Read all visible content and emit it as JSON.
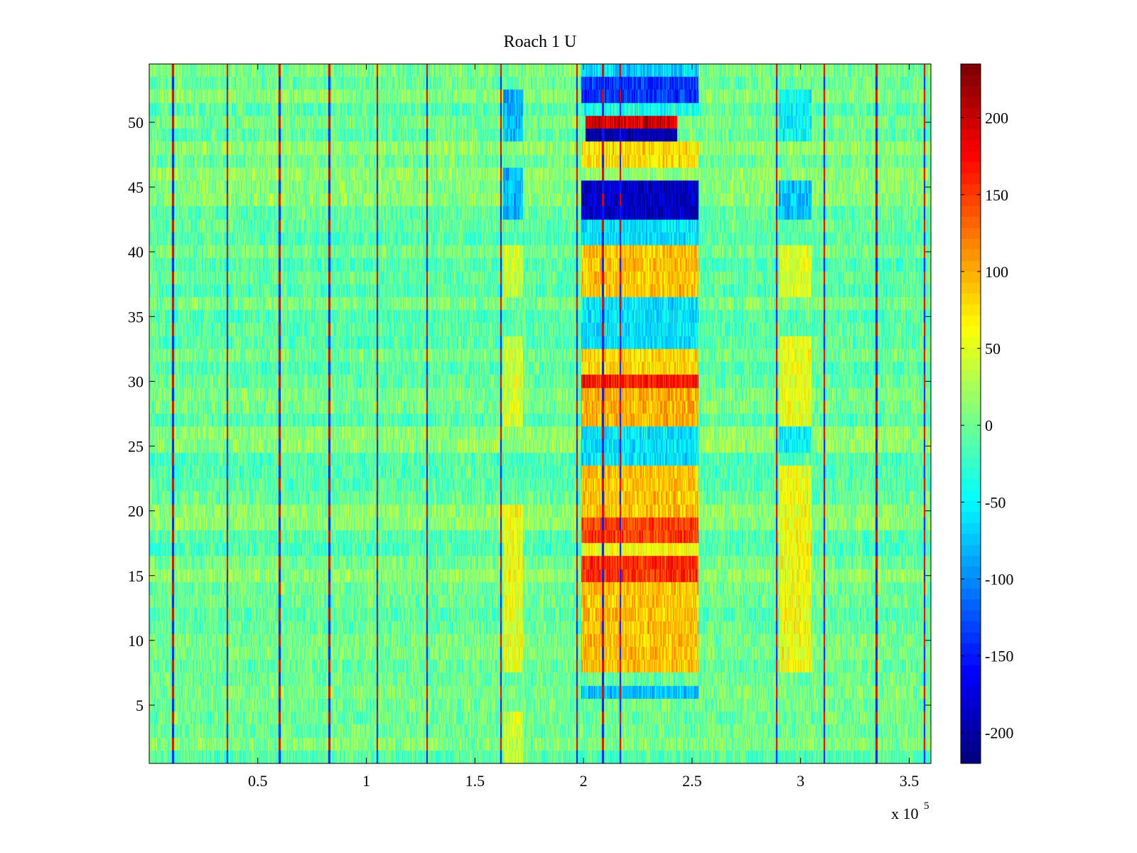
{
  "figure": {
    "background": "#ffffff"
  },
  "chart_data": {
    "type": "heatmap",
    "title": "Roach 1 U",
    "xlabel": "",
    "ylabel": "",
    "x_exponent_label": {
      "base": "x 10",
      "exponent": "5"
    },
    "xlim": [
      0,
      3.6
    ],
    "ylim": [
      0.5,
      54.5
    ],
    "x_ticks": [
      0.5,
      1,
      1.5,
      2,
      2.5,
      3,
      3.5
    ],
    "x_tick_labels": [
      "0.5",
      "1",
      "1.5",
      "2",
      "2.5",
      "3",
      "3.5"
    ],
    "y_ticks": [
      5,
      10,
      15,
      20,
      25,
      30,
      35,
      40,
      45,
      50
    ],
    "y_tick_labels": [
      "5",
      "10",
      "15",
      "20",
      "25",
      "30",
      "35",
      "40",
      "45",
      "50"
    ],
    "rows": 54,
    "colormap": "jet",
    "clim": [
      -220,
      235
    ],
    "colorbar": {
      "ticks": [
        -200,
        -150,
        -100,
        -50,
        0,
        50,
        100,
        150,
        200
      ],
      "tick_labels": [
        "-200",
        "-150",
        "-100",
        "-50",
        "0",
        "50",
        "100",
        "150",
        "200"
      ]
    },
    "background_level": 0,
    "vertical_stripes_x": [
      0.11,
      0.36,
      0.6,
      0.83,
      1.05,
      1.28,
      1.62,
      1.97,
      2.09,
      2.17,
      2.89,
      3.11,
      3.35,
      3.57
    ],
    "band_regions": [
      {
        "x": [
          1.63,
          1.72
        ],
        "rows": [
          1,
          4
        ],
        "value": 40
      },
      {
        "x": [
          1.63,
          1.72
        ],
        "rows": [
          8,
          14
        ],
        "value": 55
      },
      {
        "x": [
          1.63,
          1.72
        ],
        "rows": [
          15,
          20
        ],
        "value": 60
      },
      {
        "x": [
          1.63,
          1.72
        ],
        "rows": [
          27,
          33
        ],
        "value": 45
      },
      {
        "x": [
          1.63,
          1.72
        ],
        "rows": [
          37,
          40
        ],
        "value": 45
      },
      {
        "x": [
          1.63,
          1.72
        ],
        "rows": [
          43,
          46
        ],
        "value": -80
      },
      {
        "x": [
          1.63,
          1.72
        ],
        "rows": [
          49,
          52
        ],
        "value": -80
      },
      {
        "x": [
          1.99,
          2.53
        ],
        "rows": [
          6,
          6
        ],
        "value": -75
      },
      {
        "x": [
          1.99,
          2.53
        ],
        "rows": [
          8,
          14
        ],
        "value": 90
      },
      {
        "x": [
          1.99,
          2.53
        ],
        "rows": [
          15,
          16
        ],
        "value": 160
      },
      {
        "x": [
          1.99,
          2.53
        ],
        "rows": [
          17,
          17
        ],
        "value": 60
      },
      {
        "x": [
          1.99,
          2.53
        ],
        "rows": [
          18,
          19
        ],
        "value": 150
      },
      {
        "x": [
          1.99,
          2.53
        ],
        "rows": [
          20,
          23
        ],
        "value": 90
      },
      {
        "x": [
          1.99,
          2.53
        ],
        "rows": [
          24,
          26
        ],
        "value": -60
      },
      {
        "x": [
          1.99,
          2.53
        ],
        "rows": [
          27,
          29
        ],
        "value": 100
      },
      {
        "x": [
          1.99,
          2.53
        ],
        "rows": [
          30,
          30
        ],
        "value": 170
      },
      {
        "x": [
          1.99,
          2.53
        ],
        "rows": [
          31,
          32
        ],
        "value": 80
      },
      {
        "x": [
          1.99,
          2.53
        ],
        "rows": [
          33,
          36
        ],
        "value": -60
      },
      {
        "x": [
          1.99,
          2.53
        ],
        "rows": [
          37,
          40
        ],
        "value": 90
      },
      {
        "x": [
          1.99,
          2.53
        ],
        "rows": [
          41,
          42
        ],
        "value": -60
      },
      {
        "x": [
          1.99,
          2.53
        ],
        "rows": [
          43,
          45
        ],
        "value": -190
      },
      {
        "x": [
          1.99,
          2.53
        ],
        "rows": [
          47,
          48
        ],
        "value": 80
      },
      {
        "x": [
          2.01,
          2.43
        ],
        "rows": [
          49,
          49
        ],
        "value": -200
      },
      {
        "x": [
          2.01,
          2.43
        ],
        "rows": [
          50,
          50
        ],
        "value": 200
      },
      {
        "x": [
          1.99,
          2.53
        ],
        "rows": [
          51,
          51
        ],
        "value": -40
      },
      {
        "x": [
          1.99,
          2.53
        ],
        "rows": [
          52,
          53
        ],
        "value": -140
      },
      {
        "x": [
          1.99,
          2.53
        ],
        "rows": [
          54,
          54
        ],
        "value": -70
      },
      {
        "x": [
          2.9,
          3.05
        ],
        "rows": [
          8,
          14
        ],
        "value": 60
      },
      {
        "x": [
          2.9,
          3.05
        ],
        "rows": [
          15,
          23
        ],
        "value": 60
      },
      {
        "x": [
          2.9,
          3.05
        ],
        "rows": [
          25,
          26
        ],
        "value": -50
      },
      {
        "x": [
          2.9,
          3.05
        ],
        "rows": [
          27,
          33
        ],
        "value": 55
      },
      {
        "x": [
          2.9,
          3.05
        ],
        "rows": [
          37,
          40
        ],
        "value": 50
      },
      {
        "x": [
          2.9,
          3.05
        ],
        "rows": [
          43,
          45
        ],
        "value": -80
      },
      {
        "x": [
          2.9,
          3.05
        ],
        "rows": [
          49,
          52
        ],
        "value": -50
      }
    ]
  }
}
